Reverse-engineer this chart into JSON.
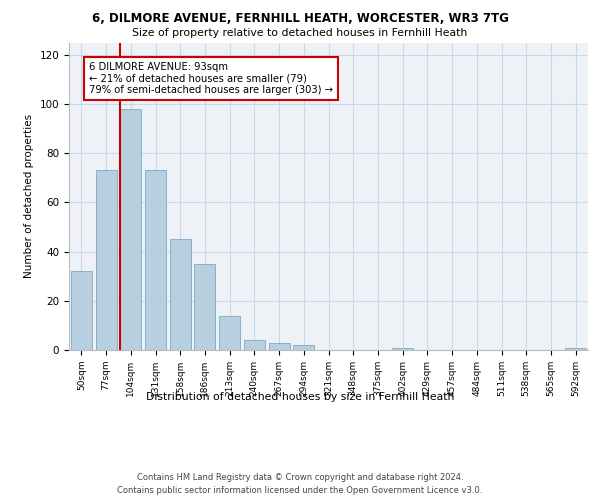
{
  "title1": "6, DILMORE AVENUE, FERNHILL HEATH, WORCESTER, WR3 7TG",
  "title2": "Size of property relative to detached houses in Fernhill Heath",
  "xlabel": "Distribution of detached houses by size in Fernhill Heath",
  "ylabel": "Number of detached properties",
  "categories": [
    "50sqm",
    "77sqm",
    "104sqm",
    "131sqm",
    "158sqm",
    "186sqm",
    "213sqm",
    "240sqm",
    "267sqm",
    "294sqm",
    "321sqm",
    "348sqm",
    "375sqm",
    "402sqm",
    "429sqm",
    "457sqm",
    "484sqm",
    "511sqm",
    "538sqm",
    "565sqm",
    "592sqm"
  ],
  "values": [
    32,
    73,
    98,
    73,
    45,
    35,
    14,
    4,
    3,
    2,
    0,
    0,
    0,
    1,
    0,
    0,
    0,
    0,
    0,
    0,
    1
  ],
  "bar_color": "#b8cfe0",
  "bar_edge_color": "#7aaac8",
  "vline_color": "#cc0000",
  "annotation_text": "6 DILMORE AVENUE: 93sqm\n← 21% of detached houses are smaller (79)\n79% of semi-detached houses are larger (303) →",
  "annotation_box_color": "#ffffff",
  "annotation_box_edge_color": "#cc0000",
  "ylim": [
    0,
    125
  ],
  "yticks": [
    0,
    20,
    40,
    60,
    80,
    100,
    120
  ],
  "grid_color": "#c8d8ea",
  "bg_color": "#eef2f7",
  "footer1": "Contains HM Land Registry data © Crown copyright and database right 2024.",
  "footer2": "Contains public sector information licensed under the Open Government Licence v3.0."
}
